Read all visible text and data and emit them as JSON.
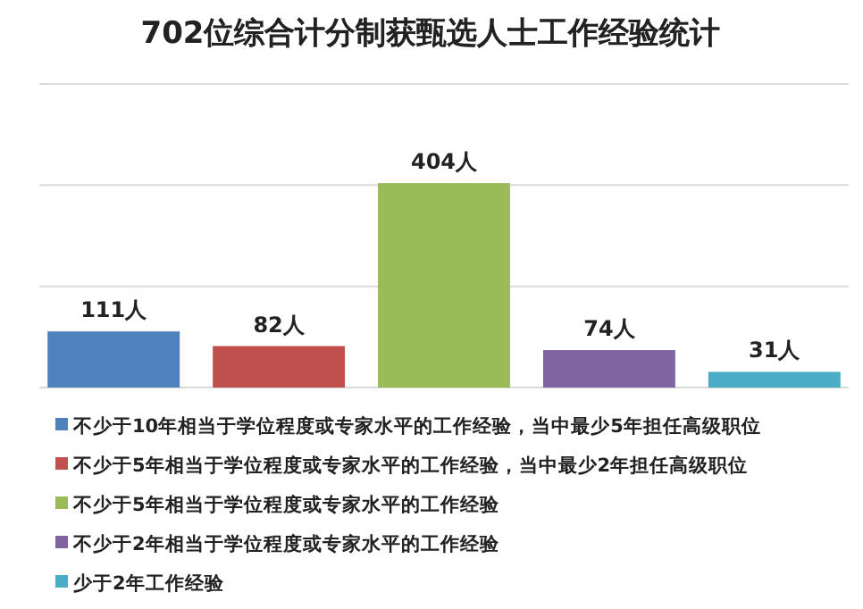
{
  "chart_data": {
    "type": "bar",
    "title": "702位综合计分制获甄选人士工作经验统计",
    "categories": [
      null,
      null,
      null,
      null,
      null
    ],
    "stacked": true,
    "ylim": [
      0,
      600
    ],
    "yticks": [
      {
        "value": 0,
        "label": null
      },
      {
        "value": 200,
        "label": null
      },
      {
        "value": 400,
        "label": null
      },
      {
        "value": 600,
        "label": null
      }
    ],
    "grid": "y",
    "legend": "bottom",
    "series": [
      {
        "name": "不少于10年相当于学位程度或专家水平的工作经验，当中最少5年担任高级职位",
        "color": "#4f81bd",
        "values": [
          111,
          0,
          0,
          0,
          0
        ],
        "value_labels": [
          "111人",
          null,
          null,
          null,
          null
        ]
      },
      {
        "name": "不少于5年相当于学位程度或专家水平的工作经验，当中最少2年担任高级职位",
        "color": "#c0504d",
        "values": [
          0,
          82,
          0,
          0,
          0
        ],
        "value_labels": [
          null,
          "82人",
          null,
          null,
          null
        ]
      },
      {
        "name": "不少于5年相当于学位程度或专家水平的工作经验",
        "color": "#9bbb59",
        "values": [
          0,
          0,
          404,
          0,
          0
        ],
        "value_labels": [
          null,
          null,
          "404人",
          null,
          null
        ]
      },
      {
        "name": "不少于2年相当于学位程度或专家水平的工作经验",
        "color": "#8064a2",
        "values": [
          0,
          0,
          0,
          74,
          0
        ],
        "value_labels": [
          null,
          null,
          null,
          "74人",
          null
        ]
      },
      {
        "name": "少于2年工作经验",
        "color": "#4bacc6",
        "values": [
          0,
          0,
          0,
          0,
          31
        ],
        "value_labels": [
          null,
          null,
          null,
          null,
          "31人"
        ]
      }
    ]
  }
}
